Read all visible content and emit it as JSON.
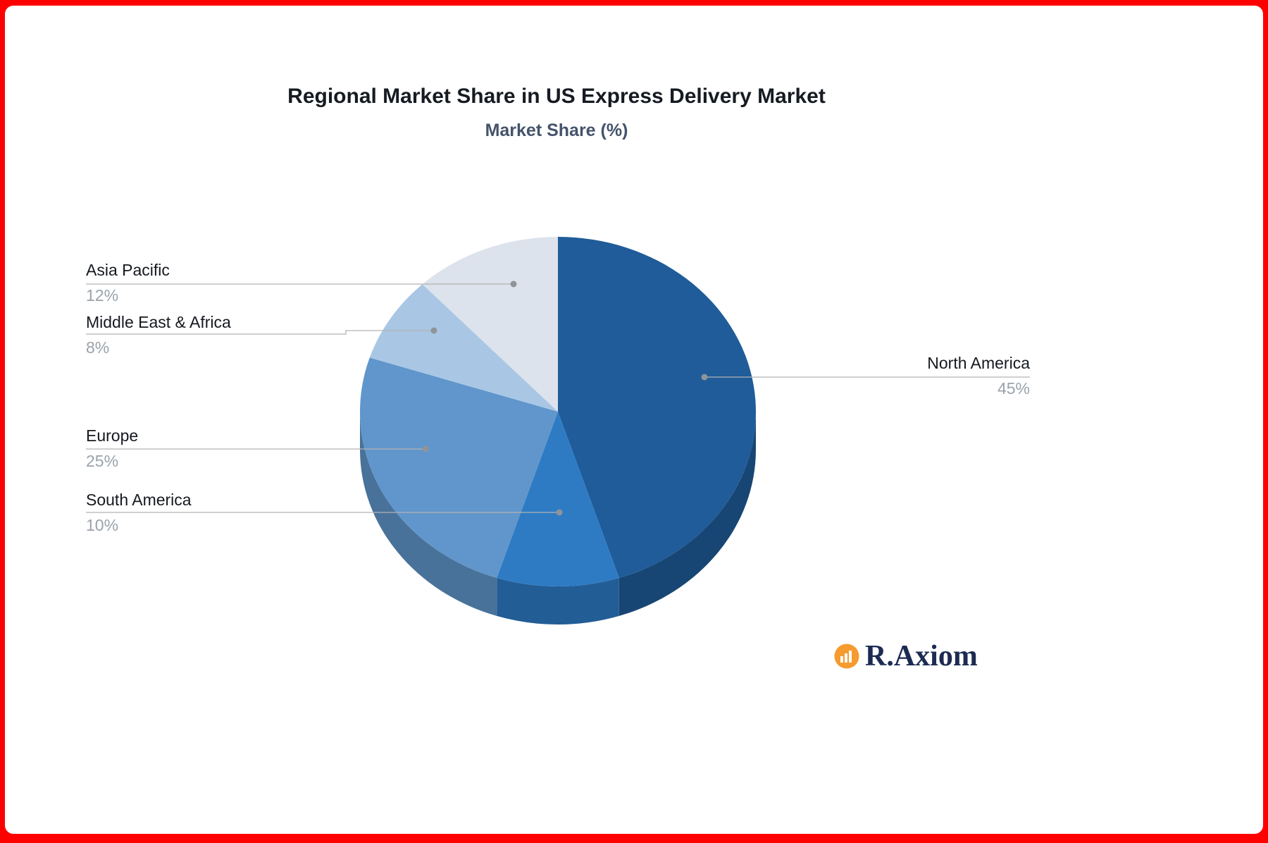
{
  "frame": {
    "color": "#ff0000",
    "background": "#ffffff"
  },
  "header": {
    "title": "Regional Market Share in US Express Delivery Market",
    "subtitle": "Market Share (%)"
  },
  "chart_data": {
    "type": "pie",
    "style": "3d",
    "title": "Regional Market Share in US Express Delivery Market",
    "subtitle": "Market Share (%)",
    "unit": "%",
    "direction": "clockwise",
    "start_angle_deg": 0,
    "legend_position": "callout-labels",
    "slices": [
      {
        "label": "North America",
        "value": 45,
        "color": "#1f5c99"
      },
      {
        "label": "South America",
        "value": 10,
        "color": "#2e7bc4"
      },
      {
        "label": "Europe",
        "value": 25,
        "color": "#6096cb"
      },
      {
        "label": "Middle East & Africa",
        "value": 8,
        "color": "#a9c7e4"
      },
      {
        "label": "Asia Pacific",
        "value": 12,
        "color": "#dde3ec"
      }
    ]
  },
  "callouts": [
    {
      "label": "Asia Pacific",
      "value": "12%"
    },
    {
      "label": "Middle East & Africa",
      "value": "8%"
    },
    {
      "label": "Europe",
      "value": "25%"
    },
    {
      "label": "South America",
      "value": "10%"
    },
    {
      "label": "North America",
      "value": "45%"
    }
  ],
  "logo": {
    "text": "R.Axiom",
    "icon": "bar-chart-icon",
    "icon_color": "#f59b2f",
    "text_color": "#1c2b52"
  }
}
